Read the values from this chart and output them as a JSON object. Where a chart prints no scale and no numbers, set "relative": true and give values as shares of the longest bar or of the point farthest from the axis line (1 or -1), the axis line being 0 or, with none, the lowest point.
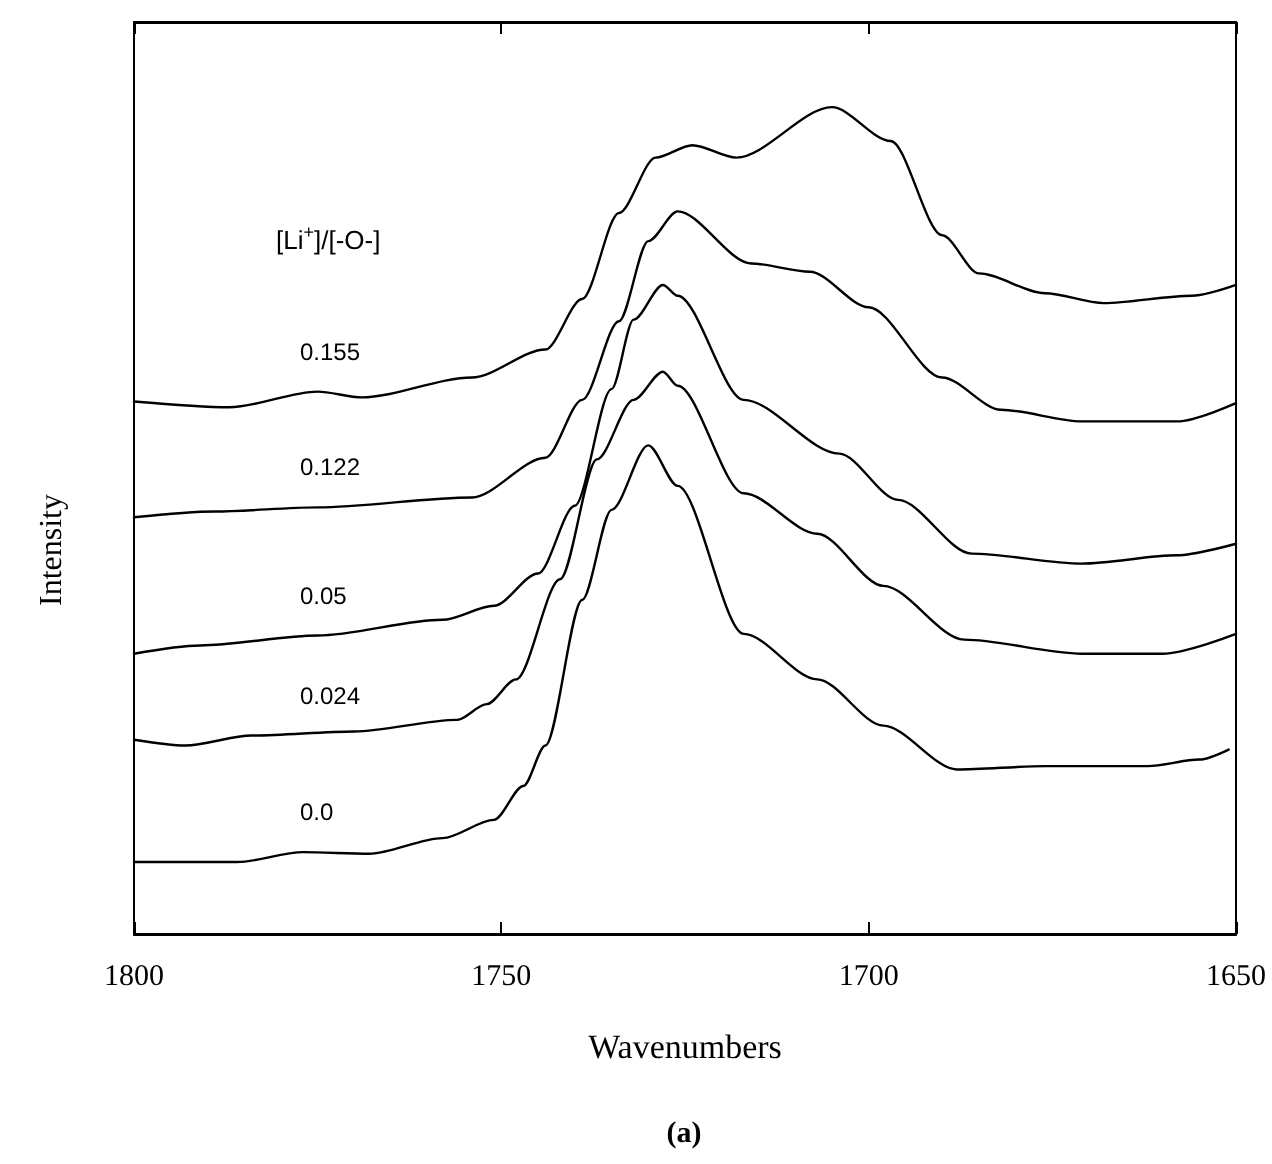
{
  "chart_data": {
    "type": "line",
    "relative": true,
    "xlabel": "Wavenumbers",
    "ylabel": "Intensity",
    "legend_title": "[Li$^{+}$]/[-O-]",
    "annotations": [
      "(a)"
    ],
    "xlim": [
      1800,
      1650
    ],
    "xticks": [
      1800,
      1750,
      1700,
      1650
    ],
    "marker": "none",
    "series": [
      {
        "name": "0.155",
        "color": "#000000",
        "x": [
          1800,
          1787,
          1775,
          1769,
          1754,
          1744,
          1739,
          1734,
          1729,
          1724,
          1718,
          1705,
          1697,
          1690,
          1685,
          1676,
          1668,
          1656,
          1650
        ],
        "values": [
          0.644,
          0.637,
          0.656,
          0.649,
          0.673,
          0.707,
          0.768,
          0.872,
          0.939,
          0.954,
          0.939,
          1.0,
          0.959,
          0.845,
          0.799,
          0.775,
          0.763,
          0.772,
          0.785
        ]
      },
      {
        "name": "0.122",
        "color": "#000000",
        "x": [
          1800,
          1789,
          1775,
          1754,
          1744,
          1739,
          1734,
          1730,
          1726,
          1716,
          1708,
          1700,
          1690,
          1682,
          1671,
          1658,
          1650
        ],
        "values": [
          0.504,
          0.511,
          0.516,
          0.528,
          0.576,
          0.646,
          0.741,
          0.838,
          0.874,
          0.811,
          0.801,
          0.758,
          0.673,
          0.634,
          0.62,
          0.62,
          0.642
        ]
      },
      {
        "name": "0.05",
        "color": "#000000",
        "x": [
          1800,
          1791,
          1775,
          1758,
          1751,
          1745,
          1740,
          1735,
          1732,
          1728,
          1726,
          1717,
          1704,
          1696,
          1686,
          1671,
          1658,
          1650
        ],
        "values": [
          0.339,
          0.349,
          0.361,
          0.38,
          0.397,
          0.436,
          0.518,
          0.659,
          0.743,
          0.785,
          0.772,
          0.646,
          0.581,
          0.525,
          0.46,
          0.448,
          0.458,
          0.472
        ]
      },
      {
        "name": "0.024",
        "color": "#000000",
        "x": [
          1800,
          1793,
          1784,
          1770,
          1756,
          1752,
          1748,
          1742,
          1737,
          1732,
          1728,
          1726,
          1717,
          1707,
          1698,
          1687,
          1671,
          1660,
          1650
        ],
        "values": [
          0.235,
          0.228,
          0.24,
          0.245,
          0.259,
          0.278,
          0.308,
          0.429,
          0.574,
          0.646,
          0.68,
          0.663,
          0.533,
          0.484,
          0.421,
          0.356,
          0.339,
          0.339,
          0.363
        ]
      },
      {
        "name": "0.0",
        "color": "#000000",
        "x": [
          1800,
          1786,
          1777,
          1768,
          1758,
          1751,
          1747,
          1744,
          1739,
          1735,
          1730,
          1726,
          1717,
          1707,
          1698,
          1688,
          1676,
          1662,
          1655,
          1651
        ],
        "values": [
          0.087,
          0.087,
          0.099,
          0.097,
          0.116,
          0.138,
          0.179,
          0.228,
          0.404,
          0.513,
          0.591,
          0.542,
          0.363,
          0.308,
          0.252,
          0.199,
          0.203,
          0.203,
          0.211,
          0.223
        ]
      }
    ]
  }
}
